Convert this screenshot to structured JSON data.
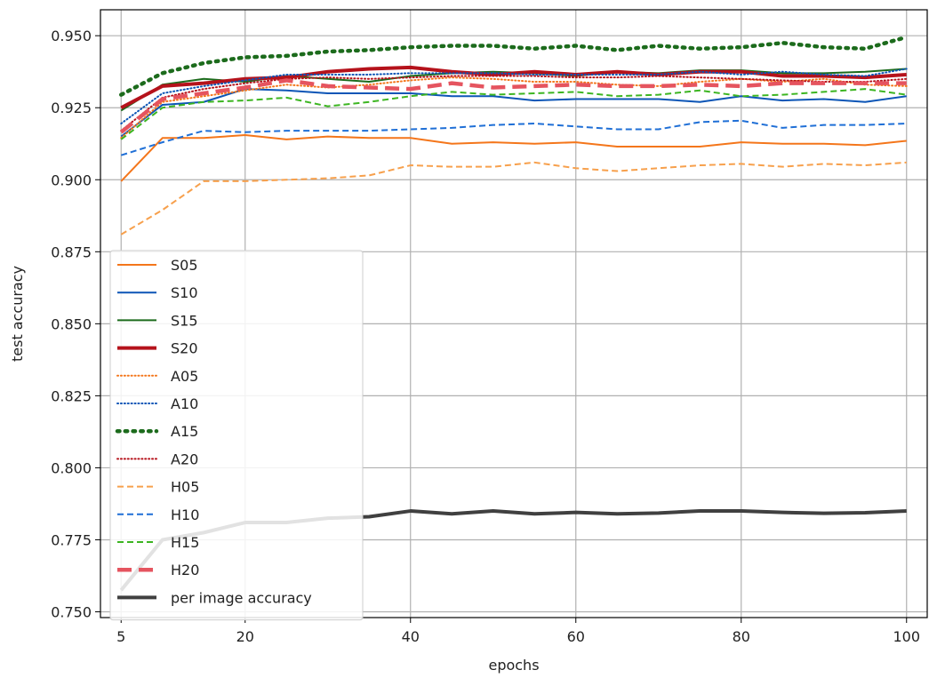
{
  "chart_data": {
    "type": "line",
    "title": "",
    "xlabel": "epochs",
    "ylabel": "test accuracy",
    "xlim": [
      2.5,
      102.5
    ],
    "ylim": [
      0.748,
      0.959
    ],
    "xticks": [
      5,
      20,
      40,
      60,
      80,
      100
    ],
    "yticks": [
      0.75,
      0.775,
      0.8,
      0.825,
      0.85,
      0.875,
      0.9,
      0.925,
      0.95
    ],
    "xtick_labels": [
      "5",
      "20",
      "40",
      "60",
      "80",
      "100"
    ],
    "ytick_labels": [
      "0.750",
      "0.775",
      "0.800",
      "0.825",
      "0.850",
      "0.875",
      "0.900",
      "0.925",
      "0.950"
    ],
    "grid": true,
    "legend_position": "lower-left",
    "x": [
      5,
      10,
      15,
      20,
      25,
      30,
      35,
      40,
      45,
      50,
      55,
      60,
      65,
      70,
      75,
      80,
      85,
      90,
      95,
      100
    ],
    "series": [
      {
        "name": "S05",
        "color": "#f4761b",
        "style": "solid",
        "width": 2,
        "values": [
          0.8995,
          0.9145,
          0.9145,
          0.9155,
          0.914,
          0.915,
          0.9145,
          0.9145,
          0.9125,
          0.913,
          0.9125,
          0.913,
          0.9115,
          0.9115,
          0.9115,
          0.913,
          0.9125,
          0.9125,
          0.912,
          0.9135
        ]
      },
      {
        "name": "S10",
        "color": "#0c55b6",
        "style": "solid",
        "width": 2,
        "values": [
          0.915,
          0.926,
          0.927,
          0.9315,
          0.931,
          0.93,
          0.93,
          0.93,
          0.929,
          0.929,
          0.9275,
          0.928,
          0.928,
          0.928,
          0.927,
          0.929,
          0.9275,
          0.928,
          0.927,
          0.929
        ]
      },
      {
        "name": "S15",
        "color": "#1c6b1c",
        "style": "solid",
        "width": 2,
        "values": [
          0.924,
          0.933,
          0.935,
          0.934,
          0.936,
          0.935,
          0.934,
          0.936,
          0.937,
          0.9375,
          0.937,
          0.936,
          0.9375,
          0.937,
          0.938,
          0.938,
          0.937,
          0.937,
          0.9375,
          0.9385
        ]
      },
      {
        "name": "S20",
        "color": "#b5121b",
        "style": "solid",
        "width": 4,
        "values": [
          0.925,
          0.9325,
          0.9335,
          0.935,
          0.9355,
          0.9375,
          0.9385,
          0.939,
          0.9375,
          0.9365,
          0.9375,
          0.9365,
          0.9375,
          0.9365,
          0.9375,
          0.9375,
          0.936,
          0.936,
          0.9355,
          0.9365
        ]
      },
      {
        "name": "A05",
        "color": "#f4761b",
        "style": "dotted",
        "width": 2,
        "values": [
          0.9145,
          0.927,
          0.929,
          0.931,
          0.933,
          0.932,
          0.933,
          0.9345,
          0.9355,
          0.935,
          0.934,
          0.934,
          0.933,
          0.9325,
          0.934,
          0.935,
          0.934,
          0.935,
          0.933,
          0.9325
        ]
      },
      {
        "name": "A10",
        "color": "#0c55b6",
        "style": "dotted",
        "width": 2,
        "values": [
          0.9195,
          0.93,
          0.9325,
          0.9345,
          0.9365,
          0.9365,
          0.9365,
          0.937,
          0.937,
          0.937,
          0.9365,
          0.9365,
          0.9365,
          0.9365,
          0.9375,
          0.9365,
          0.9375,
          0.9365,
          0.936,
          0.9385
        ]
      },
      {
        "name": "A15",
        "color": "#1c6b1c",
        "style": "dotted",
        "width": 4.5,
        "values": [
          0.9295,
          0.937,
          0.9405,
          0.9425,
          0.943,
          0.9445,
          0.945,
          0.946,
          0.9465,
          0.9465,
          0.9455,
          0.9465,
          0.945,
          0.9465,
          0.9455,
          0.946,
          0.9475,
          0.946,
          0.9455,
          0.9495
        ]
      },
      {
        "name": "A20",
        "color": "#b5121b",
        "style": "dotted",
        "width": 2,
        "values": [
          0.917,
          0.9285,
          0.9315,
          0.9335,
          0.935,
          0.9355,
          0.935,
          0.9355,
          0.936,
          0.936,
          0.936,
          0.9355,
          0.9355,
          0.936,
          0.9355,
          0.935,
          0.9345,
          0.934,
          0.934,
          0.935
        ]
      },
      {
        "name": "H05",
        "color": "#f7a04c",
        "style": "dashed",
        "width": 2,
        "values": [
          0.881,
          0.8895,
          0.8995,
          0.8995,
          0.9,
          0.9005,
          0.9015,
          0.905,
          0.9045,
          0.9045,
          0.906,
          0.904,
          0.903,
          0.904,
          0.905,
          0.9055,
          0.9045,
          0.9055,
          0.905,
          0.906
        ]
      },
      {
        "name": "H10",
        "color": "#1f6fd6",
        "style": "dashed",
        "width": 2,
        "values": [
          0.9085,
          0.913,
          0.917,
          0.9165,
          0.917,
          0.917,
          0.917,
          0.9175,
          0.918,
          0.919,
          0.9195,
          0.9185,
          0.9175,
          0.9175,
          0.92,
          0.9205,
          0.918,
          0.919,
          0.919,
          0.9195
        ]
      },
      {
        "name": "H15",
        "color": "#3cb521",
        "style": "dashed",
        "width": 2,
        "values": [
          0.914,
          0.925,
          0.927,
          0.9275,
          0.9285,
          0.9255,
          0.927,
          0.929,
          0.9305,
          0.9295,
          0.93,
          0.9305,
          0.929,
          0.9295,
          0.931,
          0.929,
          0.9295,
          0.9305,
          0.9315,
          0.9295
        ]
      },
      {
        "name": "H20",
        "color": "#e5545f",
        "style": "dashed",
        "width": 4.5,
        "values": [
          0.9165,
          0.928,
          0.93,
          0.932,
          0.9345,
          0.9325,
          0.932,
          0.9315,
          0.9335,
          0.932,
          0.9325,
          0.933,
          0.9325,
          0.9325,
          0.933,
          0.9325,
          0.9335,
          0.9335,
          0.9335,
          0.9335
        ]
      },
      {
        "name": "per image accuracy",
        "color": "#404040",
        "style": "solid",
        "width": 4,
        "values": [
          0.7575,
          0.775,
          0.7775,
          0.781,
          0.781,
          0.7825,
          0.783,
          0.785,
          0.784,
          0.785,
          0.784,
          0.7845,
          0.784,
          0.7843,
          0.785,
          0.785,
          0.7845,
          0.7842,
          0.7844,
          0.785
        ]
      }
    ]
  }
}
